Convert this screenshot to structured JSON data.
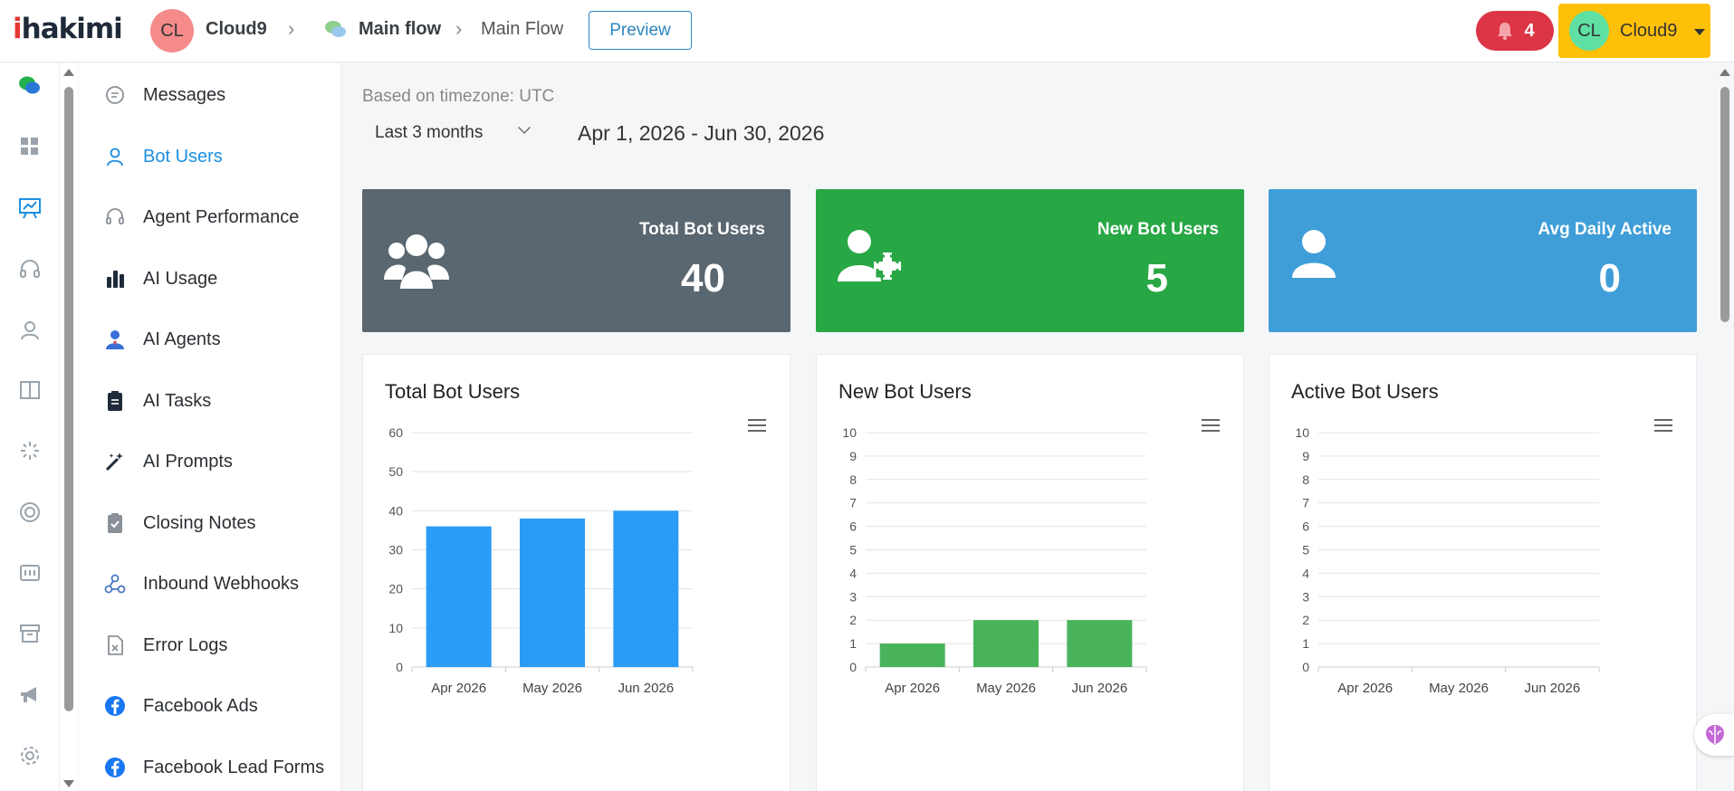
{
  "header": {
    "logo_i": "i",
    "logo_rest": "hakimi",
    "workspace_initials": "CL",
    "workspace_name": "Cloud9",
    "flow_group": "Main flow",
    "flow_name": "Main Flow",
    "preview_label": "Preview",
    "notification_count": "4",
    "user_initials": "CL",
    "user_name": "Cloud9"
  },
  "rail": {
    "icons": [
      "chat-bubbles-icon",
      "dashboard-grid-icon",
      "analytics-board-icon",
      "headset-icon",
      "user-icon",
      "columns-icon",
      "loader-icon",
      "lifebuoy-icon",
      "tasks-board-icon",
      "archive-icon",
      "megaphone-icon",
      "gear-icon"
    ]
  },
  "menu": {
    "items": [
      {
        "label": "Messages",
        "icon": "message-icon",
        "active": false
      },
      {
        "label": "Bot Users",
        "icon": "user-icon",
        "active": true
      },
      {
        "label": "Agent Performance",
        "icon": "headset-icon",
        "active": false
      },
      {
        "label": "AI Usage",
        "icon": "bar-chart-icon",
        "active": false
      },
      {
        "label": "AI Agents",
        "icon": "agent-icon",
        "active": false
      },
      {
        "label": "AI Tasks",
        "icon": "clipboard-icon",
        "active": false
      },
      {
        "label": "AI Prompts",
        "icon": "magic-wand-icon",
        "active": false
      },
      {
        "label": "Closing Notes",
        "icon": "clipboard-check-icon",
        "active": false
      },
      {
        "label": "Inbound Webhooks",
        "icon": "webhook-icon",
        "active": false
      },
      {
        "label": "Error Logs",
        "icon": "error-file-icon",
        "active": false
      },
      {
        "label": "Facebook Ads",
        "icon": "facebook-icon",
        "active": false
      },
      {
        "label": "Facebook Lead Forms",
        "icon": "facebook-icon",
        "active": false
      }
    ]
  },
  "filters": {
    "timezone_text": "Based on timezone: UTC",
    "range_selected": "Last 3 months",
    "date_range": "Apr 1, 2026 - Jun 30, 2026"
  },
  "stats": [
    {
      "title": "Total Bot Users",
      "value": "40",
      "icon": "users-group-icon"
    },
    {
      "title": "New Bot Users",
      "value": "5",
      "icon": "user-plus-icon"
    },
    {
      "title": "Avg Daily Active",
      "value": "0",
      "icon": "user-icon"
    }
  ],
  "colors": {
    "accent": "#1d8fe1",
    "stat_gray": "#5a6770",
    "stat_green": "#28a745",
    "stat_blue": "#3f9ed8",
    "bar_blue": "#2a9cf5",
    "bar_green": "#48b35b",
    "notification": "#dc3545",
    "user_button": "#ffc107"
  },
  "chart_data": [
    {
      "type": "bar",
      "title": "Total Bot Users",
      "categories": [
        "Apr 2026",
        "May 2026",
        "Jun 2026"
      ],
      "values": [
        36,
        38,
        40
      ],
      "yticks": [
        0,
        10,
        20,
        30,
        40,
        50,
        60
      ],
      "ylim": [
        0,
        60
      ],
      "color": "#2a9cf5",
      "grid": true
    },
    {
      "type": "bar",
      "title": "New Bot Users",
      "categories": [
        "Apr 2026",
        "May 2026",
        "Jun 2026"
      ],
      "values": [
        1,
        2,
        2
      ],
      "yticks": [
        0,
        1,
        2,
        3,
        4,
        5,
        6,
        7,
        8,
        9,
        10
      ],
      "ylim": [
        0,
        10
      ],
      "color": "#48b35b",
      "grid": true
    },
    {
      "type": "bar",
      "title": "Active Bot Users",
      "categories": [
        "Apr 2026",
        "May 2026",
        "Jun 2026"
      ],
      "values": [
        0,
        0,
        0
      ],
      "yticks": [
        0,
        1,
        2,
        3,
        4,
        5,
        6,
        7,
        8,
        9,
        10
      ],
      "ylim": [
        0,
        10
      ],
      "color": "#2a9cf5",
      "grid": true
    }
  ]
}
